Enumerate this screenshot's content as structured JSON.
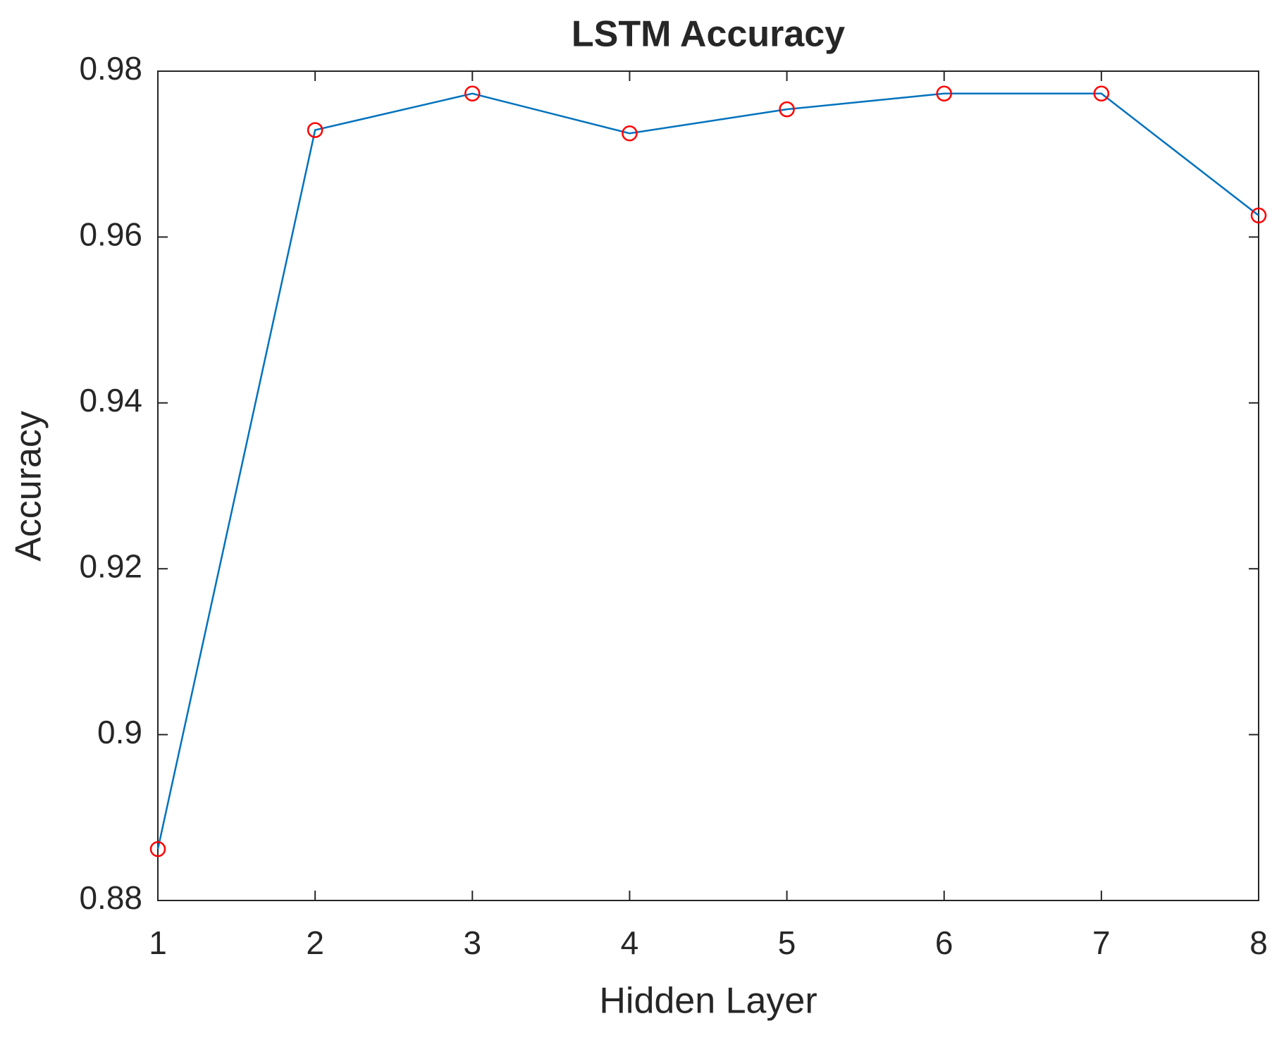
{
  "chart_data": {
    "type": "line",
    "title": "LSTM Accuracy",
    "x_label": "Hidden Layer",
    "y_label": "Accuracy",
    "x": [
      1,
      2,
      3,
      4,
      5,
      6,
      7,
      8
    ],
    "values": [
      0.8862,
      0.9729,
      0.9773,
      0.9725,
      0.9754,
      0.9773,
      0.9773,
      0.9626
    ],
    "color": "#0072bd",
    "marker_color": "#ff0000",
    "xlim": [
      1,
      8
    ],
    "xticks": [
      1,
      2,
      3,
      4,
      5,
      6,
      7,
      8
    ],
    "ylim": [
      0.88,
      0.98
    ],
    "yticks": [
      0.88,
      0.9,
      0.92,
      0.94,
      0.96,
      0.98
    ]
  }
}
